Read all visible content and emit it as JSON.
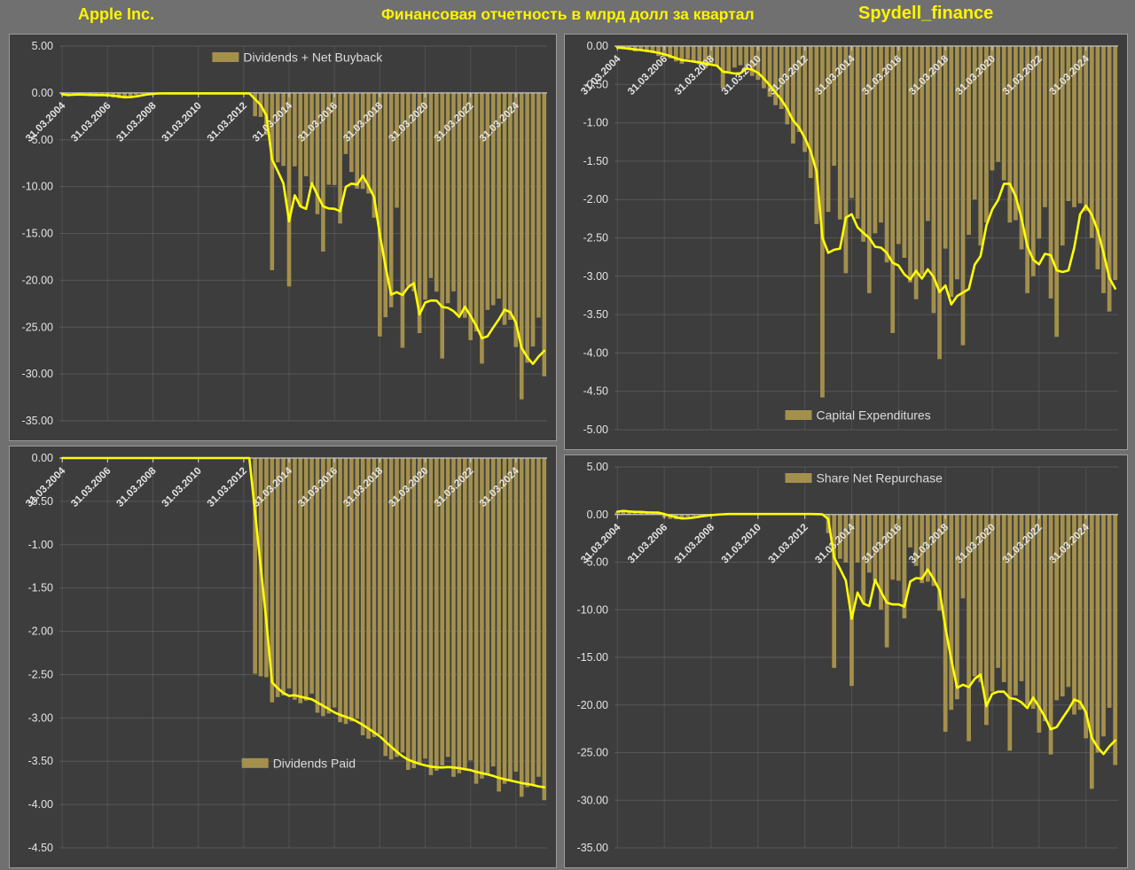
{
  "header": {
    "company": "Apple Inc.",
    "title": "Финансовая отчетность в млрд долл за квартал",
    "source": "Spydell_finance"
  },
  "colors": {
    "background": "#707070",
    "panel": "#3d3d3d",
    "bar": "#a3904d",
    "line": "#ffff00",
    "accent_text": "#fdf400",
    "axis_text": "#e3e3e3",
    "grid": "#5f5f5f",
    "zero_axis": "#c6c6c6"
  },
  "x_ticks": [
    "31.03.2004",
    "31.03.2006",
    "31.03.2008",
    "31.03.2010",
    "31.03.2012",
    "31.03.2014",
    "31.03.2016",
    "31.03.2018",
    "31.03.2020",
    "31.03.2022",
    "31.03.2024"
  ],
  "chart_data": [
    {
      "type": "bar",
      "id": "dividends-net-buyback",
      "legend": "Dividends + Net Buyback",
      "legend_pos": "top",
      "ylim": [
        -35,
        5
      ],
      "y_step": 5,
      "grid": "on",
      "line": "4q-trailing-average",
      "values": [
        -0.15,
        -0.3,
        -0.15,
        -0.1,
        -0.25,
        -0.35,
        -0.2,
        -0.1,
        -0.35,
        -0.5,
        -0.55,
        -0.45,
        -0.3,
        -0.2,
        -0.1,
        -0.05,
        -0.05,
        -0.05,
        -0.05,
        -0.05,
        -0.05,
        -0.05,
        -0.05,
        -0.05,
        -0.05,
        -0.05,
        -0.05,
        -0.05,
        -0.05,
        -0.05,
        -0.05,
        -0.05,
        -0.05,
        -0.05,
        -2.49,
        -2.57,
        -4.48,
        -18.92,
        -7.41,
        -7.79,
        -20.66,
        -7.84,
        -12.13,
        -8.9,
        -9.67,
        -12.94,
        -16.93,
        -9.8,
        -9.83,
        -13.95,
        -6.52,
        -8.44,
        -10.21,
        -10.25,
        -10.74,
        -13.32,
        -25.99,
        -23.94,
        -22.88,
        -12.25,
        -27.2,
        -20.6,
        -21.18,
        -25.64,
        -22.07,
        -19.76,
        -21.21,
        -28.35,
        -22.45,
        -21.18,
        -23.64,
        -24.0,
        -26.39,
        -25.46,
        -28.9,
        -23.16,
        -22.66,
        -21.95,
        -24.76,
        -24.22,
        -27.12,
        -32.71,
        -28.8,
        -27.07,
        -23.98,
        -30.25
      ]
    },
    {
      "type": "bar",
      "id": "capital-expenditures",
      "legend": "Capital Expenditures",
      "legend_pos": "bottom",
      "ylim": [
        -5,
        0
      ],
      "y_step": 0.5,
      "grid": "on",
      "line": "4q-trailing-average",
      "values": [
        -0.02,
        -0.03,
        -0.05,
        -0.07,
        -0.06,
        -0.07,
        -0.09,
        -0.13,
        -0.14,
        -0.16,
        -0.2,
        -0.23,
        -0.17,
        -0.21,
        -0.24,
        -0.29,
        -0.23,
        -0.26,
        -0.55,
        -0.34,
        -0.28,
        -0.25,
        -0.31,
        -0.39,
        -0.44,
        -0.55,
        -0.66,
        -0.77,
        -0.82,
        -1.02,
        -1.27,
        -1.12,
        -1.38,
        -1.72,
        -2.32,
        -4.58,
        -2.16,
        -1.56,
        -2.26,
        -2.96,
        -1.98,
        -2.25,
        -2.55,
        -3.22,
        -2.44,
        -2.3,
        -2.82,
        -3.74,
        -2.58,
        -2.76,
        -3.08,
        -3.3,
        -2.98,
        -2.28,
        -3.48,
        -4.08,
        -2.64,
        -3.27,
        -3.04,
        -3.9,
        -2.46,
        -2.0,
        -2.6,
        -2.3,
        -1.62,
        -1.51,
        -1.75,
        -2.3,
        -2.27,
        -2.65,
        -3.22,
        -3.0,
        -2.51,
        -2.1,
        -3.29,
        -3.79,
        -2.6,
        -2.02,
        -2.1,
        -2.05,
        -2.15,
        -2.5,
        -2.91,
        -3.22,
        -3.46,
        -3.05
      ]
    },
    {
      "type": "bar",
      "id": "dividends-paid",
      "legend": "Dividends Paid",
      "legend_pos": "middle",
      "ylim": [
        -4.5,
        0
      ],
      "y_step": 0.5,
      "grid": "on",
      "line": "4q-trailing-average",
      "values": [
        0,
        0,
        0,
        0,
        0,
        0,
        0,
        0,
        0,
        0,
        0,
        0,
        0,
        0,
        0,
        0,
        0,
        0,
        0,
        0,
        0,
        0,
        0,
        0,
        0,
        0,
        0,
        0,
        0,
        0,
        0,
        0,
        0,
        0,
        -2.49,
        -2.52,
        -2.53,
        -2.82,
        -2.76,
        -2.74,
        -2.66,
        -2.79,
        -2.83,
        -2.8,
        -2.72,
        -2.94,
        -2.98,
        -2.95,
        -2.88,
        -3.05,
        -3.07,
        -3.04,
        -3.01,
        -3.2,
        -3.24,
        -3.22,
        -3.19,
        -3.44,
        -3.48,
        -3.45,
        -3.4,
        -3.6,
        -3.58,
        -3.54,
        -3.47,
        -3.66,
        -3.61,
        -3.55,
        -3.45,
        -3.68,
        -3.64,
        -3.6,
        -3.49,
        -3.76,
        -3.7,
        -3.66,
        -3.56,
        -3.85,
        -3.76,
        -3.72,
        -3.62,
        -3.91,
        -3.8,
        -3.77,
        -3.68,
        -3.95
      ]
    },
    {
      "type": "bar",
      "id": "share-net-repurchase",
      "legend": "Share Net Repurchase",
      "legend_pos": "top",
      "ylim": [
        -35,
        5
      ],
      "y_step": 5,
      "grid": "on",
      "line": "4q-trailing-average",
      "values": [
        0.3,
        0.45,
        0.2,
        0.15,
        0.3,
        0.25,
        0.15,
        0.1,
        -0.3,
        -0.45,
        -0.5,
        -0.4,
        -0.25,
        -0.15,
        -0.1,
        -0.05,
        0.05,
        0.05,
        0.05,
        0.05,
        0.05,
        0.05,
        0.05,
        0.05,
        0.05,
        0.05,
        0.05,
        0.05,
        0.05,
        0.05,
        0.05,
        0.05,
        0.05,
        0.05,
        0.02,
        -0.05,
        -1.95,
        -16.1,
        -4.65,
        -5.05,
        -18.0,
        -5.05,
        -9.3,
        -6.1,
        -6.95,
        -10.0,
        -13.95,
        -6.85,
        -6.95,
        -10.9,
        -3.45,
        -5.4,
        -7.2,
        -7.05,
        -7.5,
        -10.1,
        -22.8,
        -20.5,
        -19.4,
        -8.8,
        -23.8,
        -17.0,
        -17.6,
        -22.1,
        -18.6,
        -16.1,
        -17.6,
        -24.8,
        -19.0,
        -17.5,
        -20.0,
        -20.4,
        -22.9,
        -21.7,
        -25.2,
        -19.5,
        -19.1,
        -18.1,
        -21.0,
        -20.5,
        -23.5,
        -28.8,
        -25.0,
        -23.3,
        -20.3,
        -26.3
      ]
    }
  ]
}
